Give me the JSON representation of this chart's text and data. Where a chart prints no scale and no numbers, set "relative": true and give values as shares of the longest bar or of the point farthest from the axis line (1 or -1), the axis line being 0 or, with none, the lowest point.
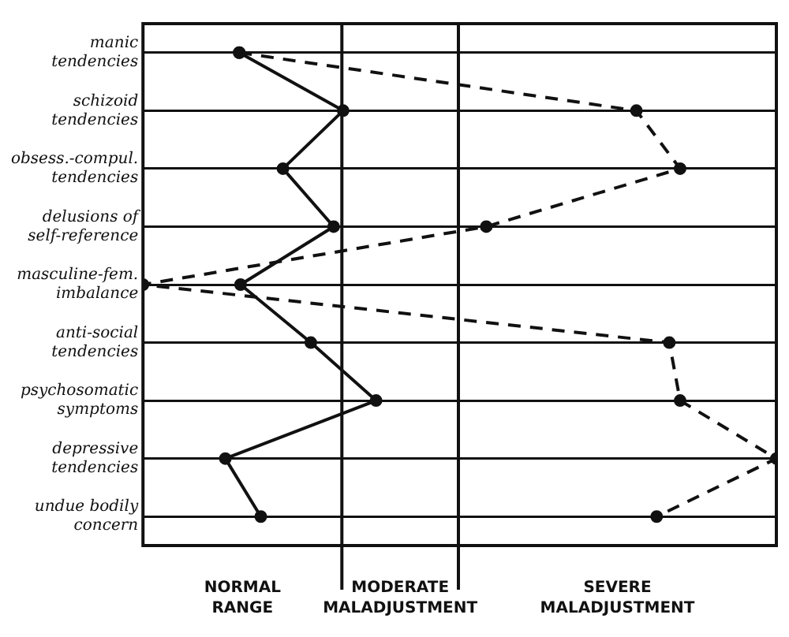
{
  "chart_data": {
    "type": "line",
    "orientation": "horizontal",
    "relative": true,
    "categories": [
      "manic tendencies",
      "schizoid tendencies",
      "obsess.-compul. tendencies",
      "delusions of self-reference",
      "masculine-fem. imbalance",
      "anti-social tendencies",
      "psychosomatic symptoms",
      "depressive tendencies",
      "undue bodily concern"
    ],
    "series": [
      {
        "color": "#111111",
        "line_style": "solid",
        "values": [
          0.152,
          0.316,
          0.221,
          0.301,
          0.154,
          0.265,
          0.368,
          0.13,
          0.186
        ]
      },
      {
        "color": "#111111",
        "line_style": "dashed",
        "values": [
          0.152,
          0.779,
          0.848,
          0.542,
          0,
          0.831,
          0.848,
          1,
          0.811
        ]
      }
    ],
    "ref_lines": [
      {
        "axis": "x",
        "value": 0.314
      },
      {
        "axis": "x",
        "value": 0.498
      }
    ],
    "annotations": [
      "NORMAL RANGE",
      "MODERATE MALADJUSTMENT",
      "SEVERE MALADJUSTMENT"
    ],
    "marker": "circle",
    "grid": "y",
    "legend": false
  }
}
